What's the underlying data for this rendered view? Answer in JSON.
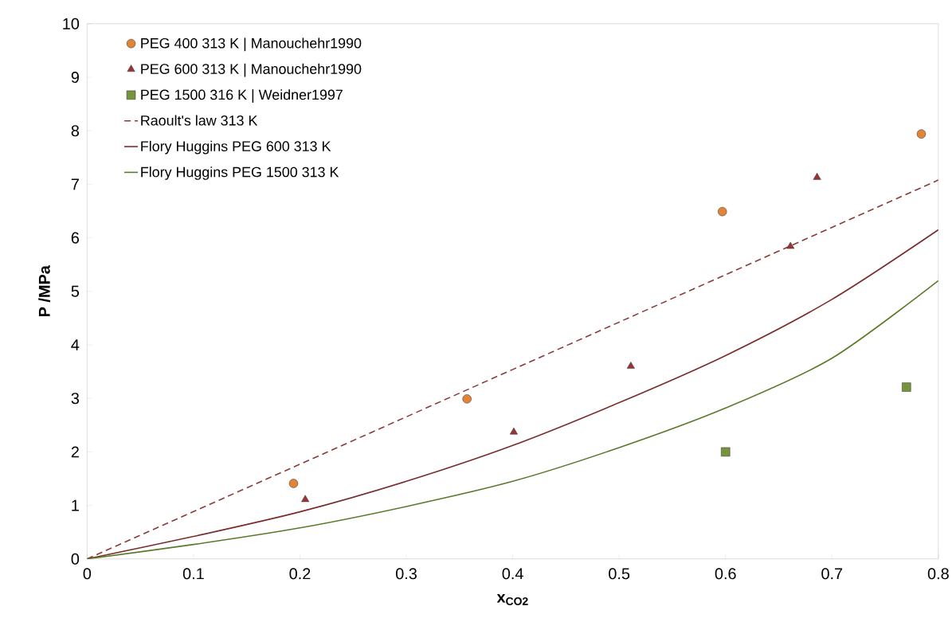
{
  "chart_data": {
    "type": "scatter",
    "xlabel": "x$_{CO2}$",
    "ylabel": "P /MPa",
    "xlim": [
      0,
      0.8
    ],
    "ylim": [
      0,
      10
    ],
    "xticks": [
      0,
      0.1,
      0.2,
      0.3,
      0.4,
      0.5,
      0.6,
      0.7,
      0.8
    ],
    "yticks": [
      0,
      1,
      2,
      3,
      4,
      5,
      6,
      7,
      8,
      9,
      10
    ],
    "grid": false,
    "legend": "top left",
    "series": [
      {
        "name": "PEG 400 313 K | Manouchehr1990",
        "marker": "circle",
        "color": "#e0843a",
        "x": [
          0.194,
          0.357,
          0.597,
          0.784
        ],
        "values": [
          1.41,
          2.99,
          6.49,
          7.94
        ]
      },
      {
        "name": "PEG 600 313 K | Manouchehr1990",
        "marker": "triangle",
        "color": "#9a3434",
        "x": [
          0.205,
          0.401,
          0.511,
          0.661,
          0.686
        ],
        "values": [
          1.11,
          2.37,
          3.6,
          5.84,
          7.13
        ]
      },
      {
        "name": "PEG 1500 316 K | Weidner1997",
        "marker": "square",
        "color": "#77933c",
        "x": [
          0.6,
          0.77
        ],
        "values": [
          2.0,
          3.21
        ]
      },
      {
        "name": "Raoult's law 313 K",
        "type": "line",
        "line_style": "dashed",
        "color": "#8b3a3a",
        "x": [
          0,
          0.8
        ],
        "values": [
          0,
          7.08
        ]
      },
      {
        "name": "Flory Huggins PEG 600 313 K",
        "type": "line",
        "line_style": "solid",
        "color": "#7b2c2c",
        "x": [
          0,
          0.1,
          0.2,
          0.3,
          0.4,
          0.5,
          0.6,
          0.7,
          0.8
        ],
        "values": [
          0,
          0.42,
          0.88,
          1.45,
          2.12,
          2.92,
          3.8,
          4.85,
          6.15
        ]
      },
      {
        "name": "Flory Huggins PEG 1500 313 K",
        "type": "line",
        "line_style": "solid",
        "color": "#5a7a2a",
        "x": [
          0,
          0.1,
          0.2,
          0.3,
          0.4,
          0.5,
          0.6,
          0.7,
          0.8
        ],
        "values": [
          0,
          0.27,
          0.58,
          0.98,
          1.45,
          2.08,
          2.82,
          3.75,
          5.2
        ]
      }
    ]
  }
}
